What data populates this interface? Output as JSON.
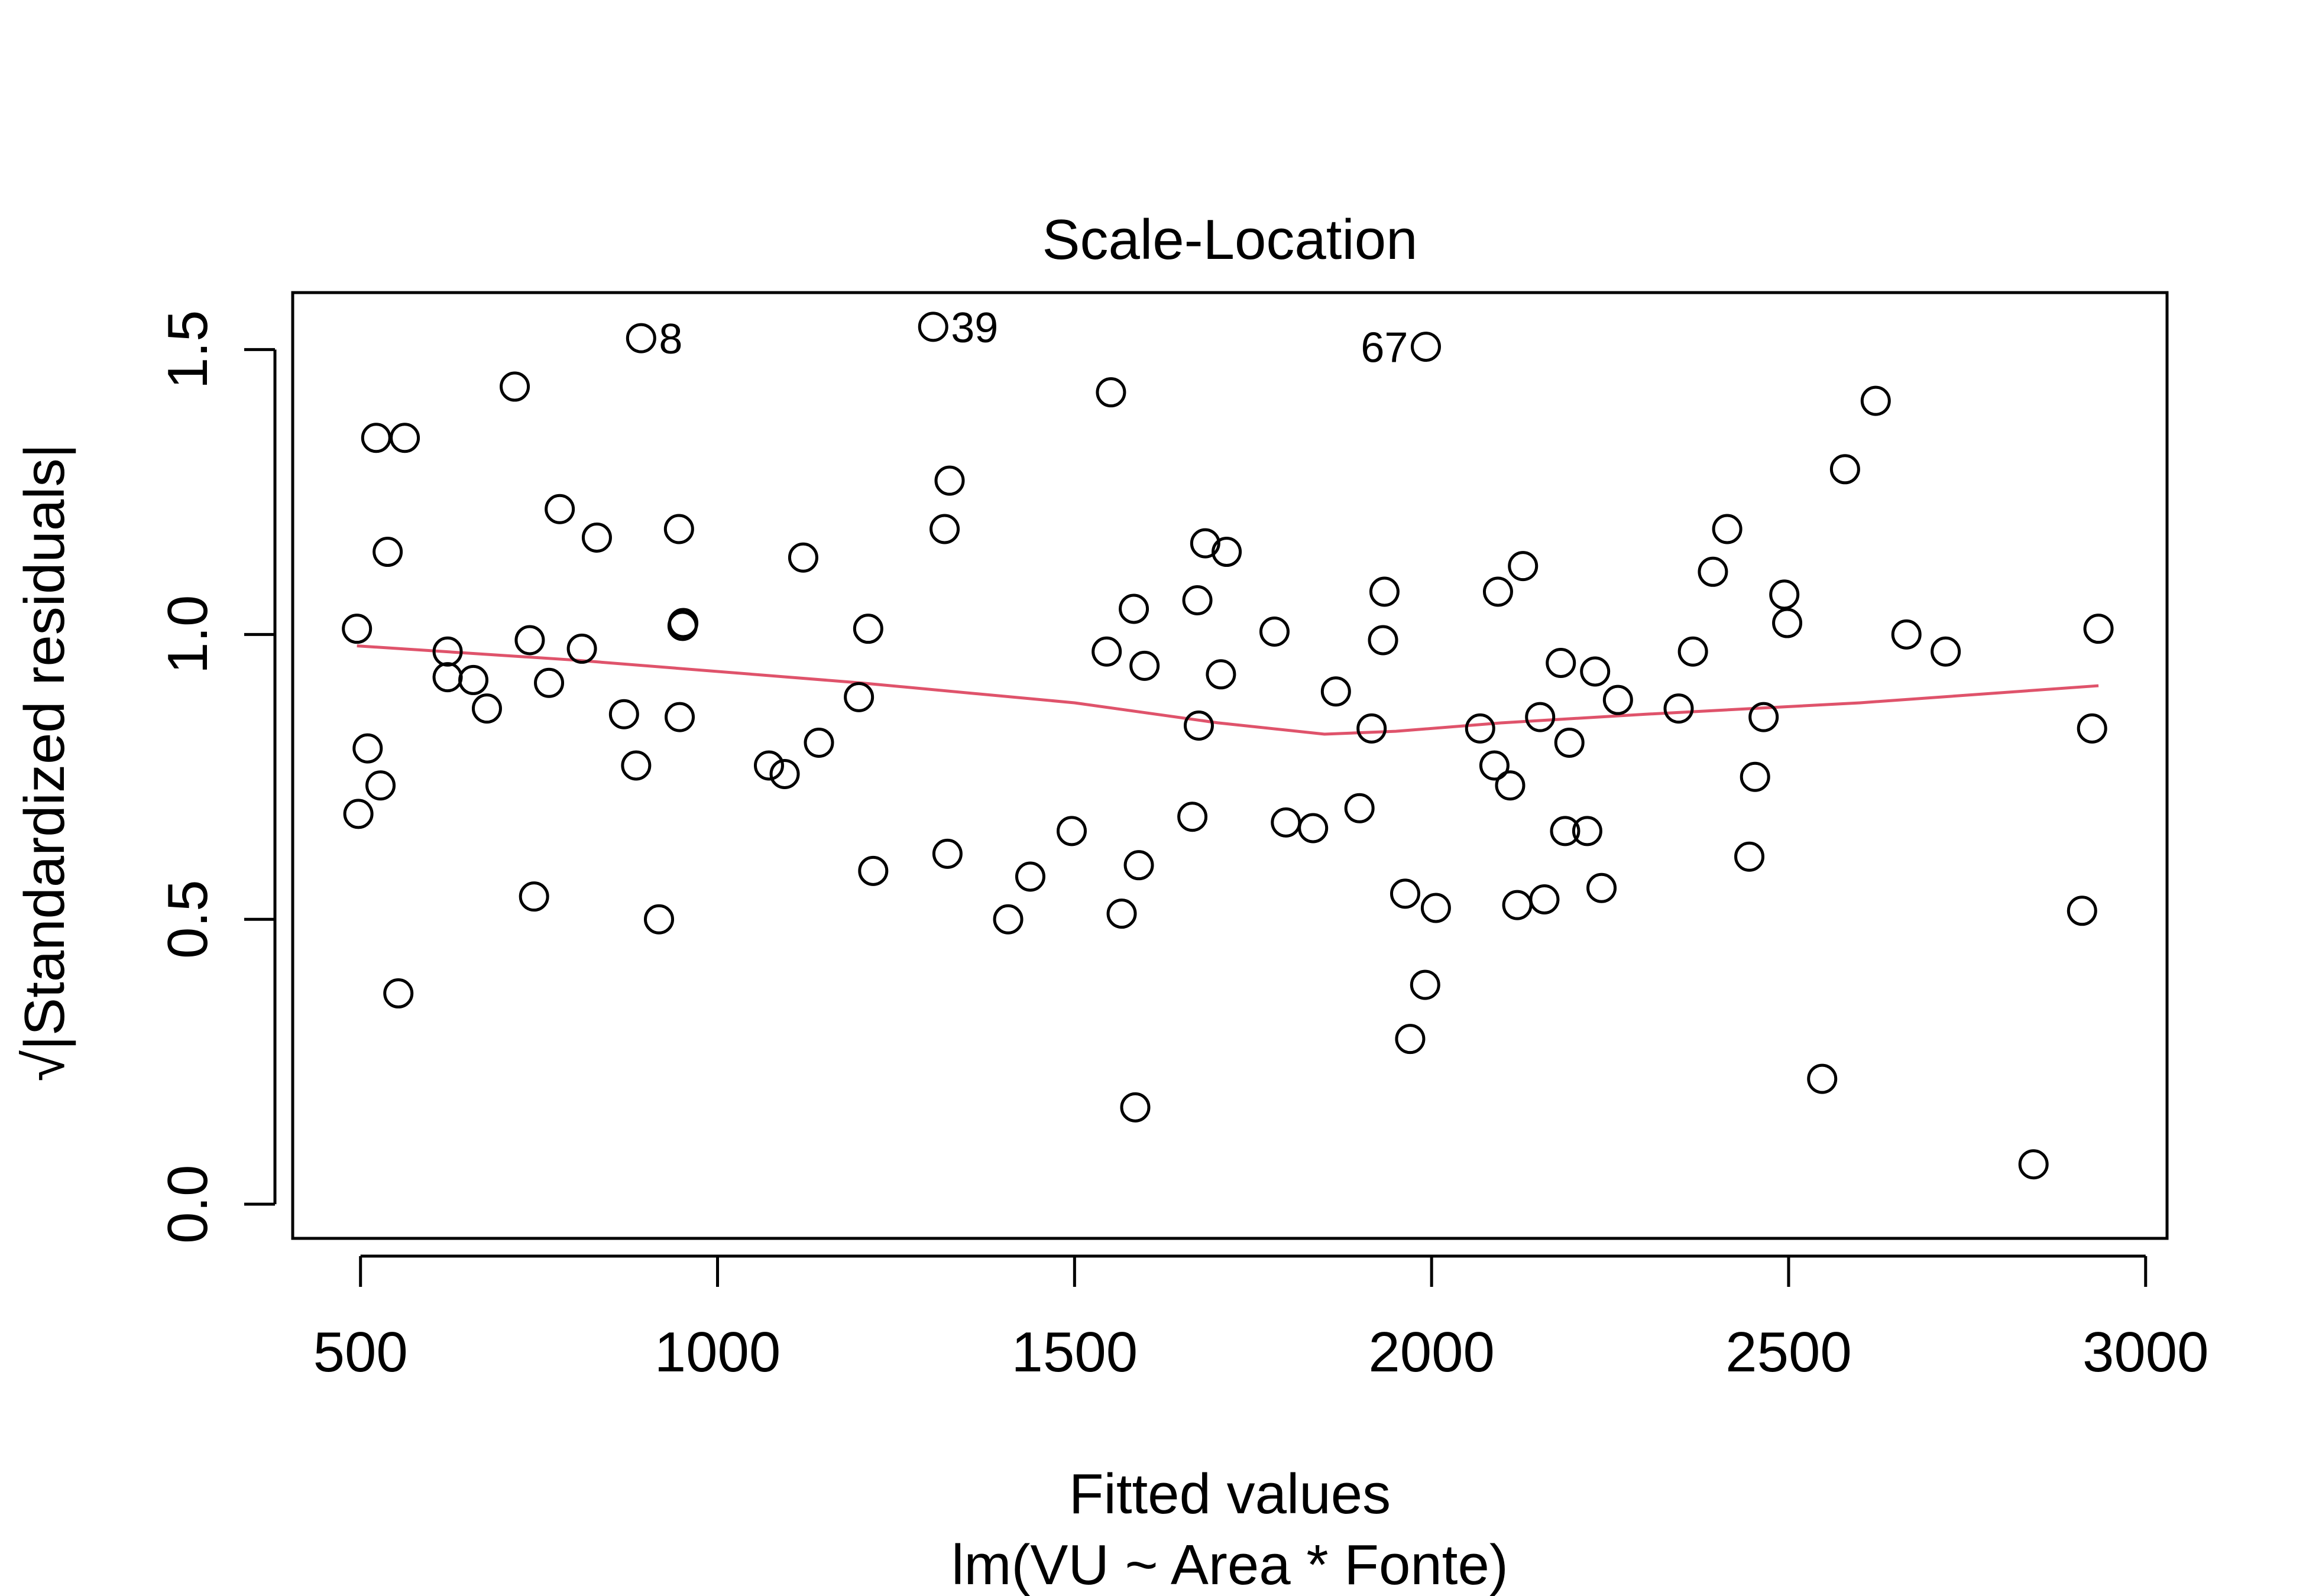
{
  "chart_data": {
    "type": "scatter",
    "title": "Scale-Location",
    "xlabel": "Fitted values",
    "subtitle": "lm(VU ~ Area * Fonte)",
    "ylabel": "√|Standardized residuals|",
    "xlim": [
      405,
      3030
    ],
    "ylim": [
      -0.06,
      1.6
    ],
    "x_ticks": [
      500,
      1000,
      1500,
      2000,
      2500,
      3000
    ],
    "y_ticks": [
      0.0,
      0.5,
      1.0,
      1.5
    ],
    "x_tick_labels": [
      "500",
      "1000",
      "1500",
      "2000",
      "2500",
      "3000"
    ],
    "y_tick_labels": [
      "0.0",
      "0.5",
      "1.0",
      "1.5"
    ],
    "grid": false,
    "points": [
      [
        495,
        1.01
      ],
      [
        497,
        0.685
      ],
      [
        510,
        0.8
      ],
      [
        522,
        1.345
      ],
      [
        528,
        0.735
      ],
      [
        538,
        1.145
      ],
      [
        553,
        0.37
      ],
      [
        562,
        1.345
      ],
      [
        622,
        0.97
      ],
      [
        622,
        0.925
      ],
      [
        658,
        0.92
      ],
      [
        677,
        0.87
      ],
      [
        716,
        1.435
      ],
      [
        737,
        0.99
      ],
      [
        743,
        0.54
      ],
      [
        764,
        0.915
      ],
      [
        779,
        1.22
      ],
      [
        810,
        0.975
      ],
      [
        831,
        1.17
      ],
      [
        869,
        0.86
      ],
      [
        886,
        0.77
      ],
      [
        893,
        1.52
      ],
      [
        918,
        0.5
      ],
      [
        946,
        1.185
      ],
      [
        947,
        0.855
      ],
      [
        951,
        1.015
      ],
      [
        952,
        1.02
      ],
      [
        1072,
        0.77
      ],
      [
        1094,
        0.755
      ],
      [
        1120,
        1.135
      ],
      [
        1142,
        0.81
      ],
      [
        1198,
        0.89
      ],
      [
        1211,
        1.01
      ],
      [
        1218,
        0.585
      ],
      [
        1302,
        1.54
      ],
      [
        1318,
        1.185
      ],
      [
        1322,
        0.615
      ],
      [
        1325,
        1.27
      ],
      [
        1407,
        0.5
      ],
      [
        1438,
        0.575
      ],
      [
        1496,
        0.655
      ],
      [
        1545,
        0.97
      ],
      [
        1551,
        1.425
      ],
      [
        1566,
        0.51
      ],
      [
        1583,
        1.045
      ],
      [
        1585,
        0.17
      ],
      [
        1590,
        0.595
      ],
      [
        1598,
        0.945
      ],
      [
        1665,
        0.68
      ],
      [
        1672,
        1.06
      ],
      [
        1674,
        0.84
      ],
      [
        1683,
        1.16
      ],
      [
        1705,
        0.93
      ],
      [
        1713,
        1.145
      ],
      [
        1780,
        1.005
      ],
      [
        1796,
        0.67
      ],
      [
        1834,
        0.66
      ],
      [
        1866,
        0.9
      ],
      [
        1899,
        0.695
      ],
      [
        1916,
        0.835
      ],
      [
        1932,
        0.99
      ],
      [
        1934,
        1.075
      ],
      [
        1963,
        0.545
      ],
      [
        1970,
        0.29
      ],
      [
        1991,
        0.385
      ],
      [
        1992,
        1.505
      ],
      [
        2006,
        0.52
      ],
      [
        2068,
        0.835
      ],
      [
        2088,
        0.77
      ],
      [
        2093,
        1.075
      ],
      [
        2110,
        0.735
      ],
      [
        2120,
        0.525
      ],
      [
        2128,
        1.12
      ],
      [
        2152,
        0.855
      ],
      [
        2158,
        0.535
      ],
      [
        2181,
        0.95
      ],
      [
        2187,
        0.655
      ],
      [
        2193,
        0.81
      ],
      [
        2218,
        0.655
      ],
      [
        2229,
        0.935
      ],
      [
        2238,
        0.555
      ],
      [
        2261,
        0.885
      ],
      [
        2346,
        0.87
      ],
      [
        2366,
        0.97
      ],
      [
        2394,
        1.11
      ],
      [
        2414,
        1.185
      ],
      [
        2445,
        0.61
      ],
      [
        2453,
        0.75
      ],
      [
        2465,
        0.855
      ],
      [
        2494,
        1.07
      ],
      [
        2498,
        1.02
      ],
      [
        2547,
        0.22
      ],
      [
        2579,
        1.29
      ],
      [
        2622,
        1.41
      ],
      [
        2665,
        1.0
      ],
      [
        2720,
        0.97
      ],
      [
        2843,
        0.07
      ],
      [
        2911,
        0.515
      ],
      [
        2925,
        0.835
      ],
      [
        2934,
        1.01
      ]
    ],
    "labeled_points": [
      {
        "label": "8",
        "x": 893,
        "y": 1.52,
        "side": "right"
      },
      {
        "label": "39",
        "x": 1302,
        "y": 1.54,
        "side": "right"
      },
      {
        "label": "67",
        "x": 1992,
        "y": 1.505,
        "side": "left"
      }
    ],
    "smooth_line": {
      "color": "#DF536B",
      "x": [
        495,
        800,
        1200,
        1500,
        1700,
        1850,
        1950,
        2100,
        2300,
        2600,
        2934
      ],
      "y": [
        0.98,
        0.955,
        0.915,
        0.88,
        0.845,
        0.825,
        0.83,
        0.845,
        0.86,
        0.88,
        0.91
      ]
    },
    "point_color": "#000000"
  }
}
